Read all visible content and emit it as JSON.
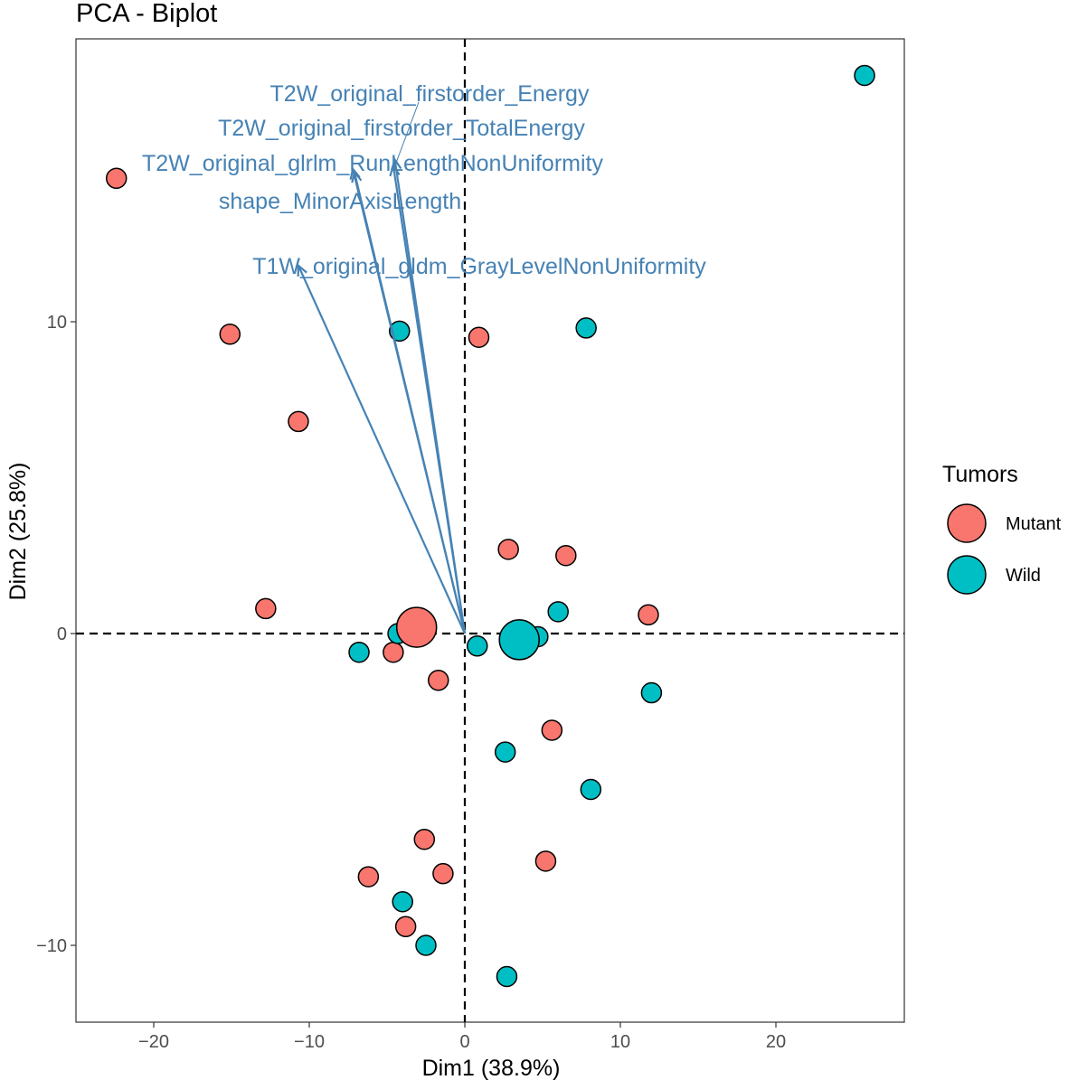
{
  "chart_data": {
    "type": "scatter",
    "title": "PCA - Biplot",
    "xlabel": "Dim1 (38.9%)",
    "ylabel": "Dim2 (25.8%)",
    "xlim": [
      -25,
      28
    ],
    "ylim": [
      -12.5,
      19
    ],
    "xticks": [
      -20,
      -10,
      0,
      10,
      20
    ],
    "xtick_labels": [
      "−20",
      "−10",
      "0",
      "10",
      "20"
    ],
    "yticks": [
      -10,
      0,
      10
    ],
    "ytick_labels": [
      "−10",
      "0",
      "10"
    ],
    "grid": false,
    "legend": {
      "title": "Tumors",
      "position": "right",
      "entries": [
        {
          "label": "Mutant",
          "color": "#F8766D"
        },
        {
          "label": "Wild",
          "color": "#00BFC4"
        }
      ]
    },
    "series": [
      {
        "name": "Mutant",
        "color": "#F8766D",
        "points": [
          {
            "x": -22.4,
            "y": 14.6
          },
          {
            "x": -15.1,
            "y": 9.6
          },
          {
            "x": 0.9,
            "y": 9.5
          },
          {
            "x": -10.7,
            "y": 6.8
          },
          {
            "x": 2.8,
            "y": 2.7
          },
          {
            "x": 6.5,
            "y": 2.5
          },
          {
            "x": -12.8,
            "y": 0.8
          },
          {
            "x": 11.8,
            "y": 0.6
          },
          {
            "x": -4.6,
            "y": -0.6
          },
          {
            "x": -1.7,
            "y": -1.5
          },
          {
            "x": 5.6,
            "y": -3.1
          },
          {
            "x": -2.6,
            "y": -6.6
          },
          {
            "x": -6.2,
            "y": -7.8
          },
          {
            "x": -1.4,
            "y": -7.7
          },
          {
            "x": 5.2,
            "y": -7.3
          },
          {
            "x": -3.8,
            "y": -9.4
          }
        ],
        "centroid": {
          "x": -3.1,
          "y": 0.2
        }
      },
      {
        "name": "Wild",
        "color": "#00BFC4",
        "points": [
          {
            "x": 25.7,
            "y": 17.9
          },
          {
            "x": -4.2,
            "y": 9.7
          },
          {
            "x": 7.8,
            "y": 9.8
          },
          {
            "x": 6.0,
            "y": 0.7
          },
          {
            "x": -4.3,
            "y": 0.0
          },
          {
            "x": 4.7,
            "y": -0.1
          },
          {
            "x": -6.8,
            "y": -0.6
          },
          {
            "x": 0.8,
            "y": -0.4
          },
          {
            "x": 12.0,
            "y": -1.9
          },
          {
            "x": 2.6,
            "y": -3.8
          },
          {
            "x": 8.1,
            "y": -5.0
          },
          {
            "x": -4.0,
            "y": -8.6
          },
          {
            "x": -2.5,
            "y": -10.0
          },
          {
            "x": 2.7,
            "y": -11.0
          }
        ],
        "centroid": {
          "x": 3.5,
          "y": -0.2
        }
      }
    ],
    "variables": [
      {
        "name": "T2W_original_firstorder_Energy",
        "x": -4.5,
        "y": 15.2
      },
      {
        "name": "T2W_original_firstorder_TotalEnergy",
        "x": -4.6,
        "y": 15.0
      },
      {
        "name": "T2W_original_glrlm_RunLengthNonUniformity",
        "x": -7.1,
        "y": 14.8
      },
      {
        "name": "shape_MinorAxisLength",
        "x": -7.2,
        "y": 14.9
      },
      {
        "name": "T1W_original_gldm_GrayLevelNonUniformity",
        "x": -10.7,
        "y": 11.8
      }
    ],
    "variable_color": "#4682B4"
  }
}
